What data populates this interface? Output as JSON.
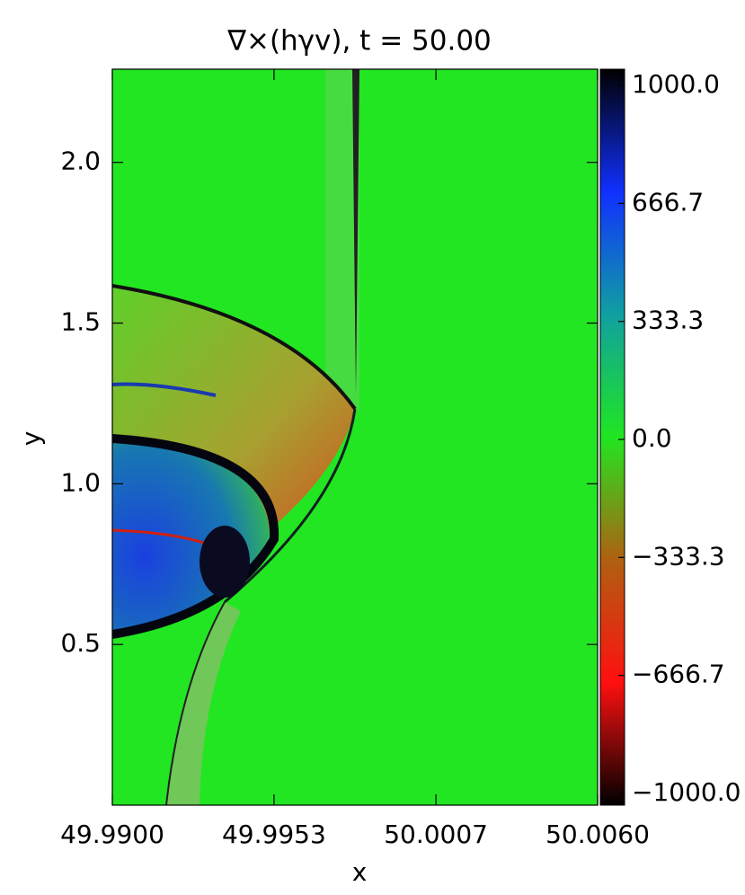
{
  "chart_data": {
    "type": "image",
    "title": "∇×(hγv), t = 50.00",
    "x_label": "x",
    "y_label": "y",
    "xlim": [
      49.99,
      50.006
    ],
    "xticks": [
      {
        "value": 49.99,
        "label": "49.9900"
      },
      {
        "value": 49.99533,
        "label": "49.9953"
      },
      {
        "value": 50.00067,
        "label": "50.0007"
      },
      {
        "value": 50.006,
        "label": "50.0060"
      }
    ],
    "ylim": [
      0,
      2.29
    ],
    "yticks": [
      0.5,
      {
        "value": 1,
        "label": "1.0"
      },
      1.5,
      {
        "value": 2,
        "label": "2.0"
      }
    ],
    "clim": [
      -1000,
      1000
    ],
    "cticks": [
      {
        "value": -1000,
        "label": "−1000.0"
      },
      {
        "value": -666.7,
        "label": "−666.7"
      },
      {
        "value": -333.3,
        "label": "−333.3"
      },
      {
        "value": 0,
        "label": "0.0"
      },
      {
        "value": 333.3,
        "label": "333.3"
      },
      {
        "value": 666.7,
        "label": "666.7"
      },
      {
        "value": 1000,
        "label": "1000.0"
      }
    ],
    "colormap": [
      "#000000",
      "#ff1010",
      "#b06010",
      "#20e620",
      "#10a0a0",
      "#1030ff",
      "#000000"
    ]
  }
}
